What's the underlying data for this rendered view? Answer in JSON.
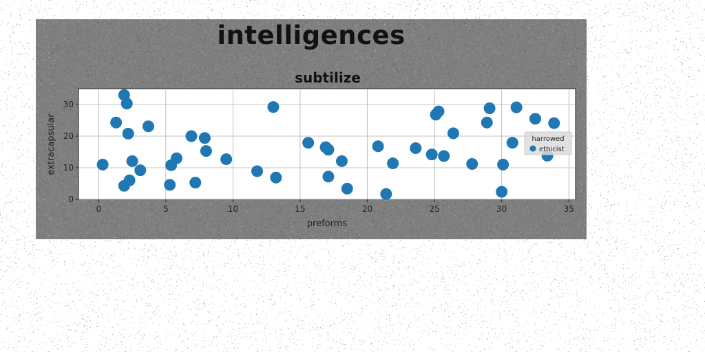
{
  "figure": {
    "suptitle": "intelligences",
    "background": "#7f7f7f",
    "page_background": "#ffffff"
  },
  "chart_data": {
    "type": "scatter",
    "title": "subtilize",
    "xlabel": "preforms",
    "ylabel": "extracapsular",
    "xlim": [
      -1.5,
      35.5
    ],
    "ylim": [
      0,
      35
    ],
    "xticks": [
      0,
      5,
      10,
      15,
      20,
      25,
      30,
      35
    ],
    "yticks": [
      0,
      10,
      20,
      30
    ],
    "grid": true,
    "legend": {
      "title": "harrowed",
      "placement": "center-right",
      "entries": [
        "ethicist"
      ]
    },
    "series": [
      {
        "name": "ethicist",
        "color": "#1f77b4",
        "points": [
          [
            0.3,
            11
          ],
          [
            1.3,
            24.3
          ],
          [
            1.9,
            33
          ],
          [
            2.1,
            30.3
          ],
          [
            2.2,
            20.8
          ],
          [
            2.5,
            12.1
          ],
          [
            1.9,
            4.3
          ],
          [
            2.3,
            6
          ],
          [
            3.1,
            9.2
          ],
          [
            3.7,
            23.1
          ],
          [
            5.4,
            10.8
          ],
          [
            5.3,
            4.6
          ],
          [
            5.8,
            13
          ],
          [
            6.9,
            20
          ],
          [
            7.2,
            5.3
          ],
          [
            7.9,
            19.4
          ],
          [
            8.0,
            15.3
          ],
          [
            9.5,
            12.7
          ],
          [
            11.8,
            8.9
          ],
          [
            13.0,
            29.2
          ],
          [
            13.2,
            6.9
          ],
          [
            15.6,
            17.9
          ],
          [
            16.9,
            16.5
          ],
          [
            17.1,
            15.7
          ],
          [
            17.1,
            7.2
          ],
          [
            18.1,
            12.1
          ],
          [
            18.5,
            3.4
          ],
          [
            20.8,
            16.8
          ],
          [
            21.4,
            1.7
          ],
          [
            21.9,
            11.4
          ],
          [
            23.6,
            16.2
          ],
          [
            24.8,
            14.2
          ],
          [
            25.1,
            26.8
          ],
          [
            25.3,
            27.8
          ],
          [
            25.7,
            13.7
          ],
          [
            26.4,
            20.9
          ],
          [
            27.8,
            11.2
          ],
          [
            28.9,
            24.3
          ],
          [
            29.1,
            28.8
          ],
          [
            30.0,
            2.4
          ],
          [
            30.1,
            11
          ],
          [
            30.8,
            17.9
          ],
          [
            31.1,
            29.1
          ],
          [
            32.5,
            25.5
          ],
          [
            33.4,
            13.8
          ],
          [
            33.9,
            24.1
          ]
        ]
      }
    ]
  }
}
